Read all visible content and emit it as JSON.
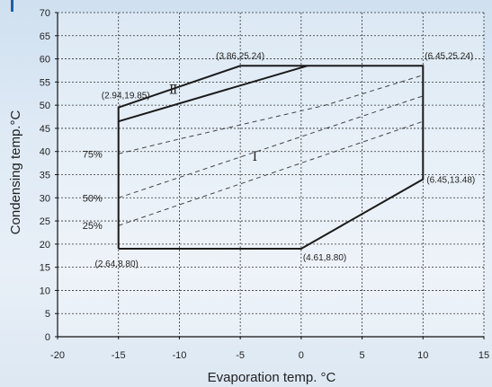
{
  "chart_data": {
    "type": "line",
    "title": "",
    "xlabel": "Evaporation temp.  °C",
    "ylabel": "Condensing temp.°C",
    "xlim": [
      -20,
      15
    ],
    "ylim": [
      0,
      70
    ],
    "x_ticks": [
      "-20",
      "-15",
      "-10",
      "-5",
      "0",
      "5",
      "10",
      "15"
    ],
    "y_ticks": [
      "0",
      "5",
      "10",
      "15",
      "20",
      "25",
      "30",
      "35",
      "40",
      "45",
      "50",
      "55",
      "60",
      "65",
      "70"
    ],
    "grid": true,
    "envelope": {
      "name": "operating-envelope",
      "points": [
        [
          -15,
          19
        ],
        [
          0,
          19
        ],
        [
          10,
          34
        ],
        [
          10,
          58.5
        ],
        [
          -5,
          58.5
        ],
        [
          -15,
          49.5
        ],
        [
          -15,
          19
        ]
      ]
    },
    "region_divider": {
      "points": [
        [
          -15,
          46.5
        ],
        [
          0.5,
          58.5
        ]
      ]
    },
    "dashed_lines": [
      {
        "label": "75%",
        "points": [
          [
            -15,
            39.5
          ],
          [
            -10,
            42.7
          ],
          [
            2,
            50
          ],
          [
            10,
            56.5
          ]
        ]
      },
      {
        "label": "50%",
        "points": [
          [
            -15,
            30
          ],
          [
            10,
            52
          ]
        ]
      },
      {
        "label": "25%",
        "points": [
          [
            -15,
            24
          ],
          [
            10,
            46.5
          ]
        ]
      }
    ],
    "regions": [
      {
        "label": "Ⅱ",
        "x": -10.5,
        "y": 52.5
      },
      {
        "label": "Ⅰ",
        "x": -3.8,
        "y": 38
      }
    ],
    "annotations": [
      {
        "text": "(3.86,25.24)",
        "x": -5,
        "y": 58.5,
        "pos": "top"
      },
      {
        "text": "(6.45,25.24)",
        "x": 10,
        "y": 58.5,
        "pos": "top-right"
      },
      {
        "text": "(2.94,19.85)",
        "x": -15,
        "y": 49.5,
        "pos": "top-left"
      },
      {
        "text": "(6.45,13.48)",
        "x": 10,
        "y": 34,
        "pos": "right"
      },
      {
        "text": "(4.61,8.80)",
        "x": 0,
        "y": 19,
        "pos": "bottom-right"
      },
      {
        "text": "(2.64,8.80)",
        "x": -15,
        "y": 19,
        "pos": "bottom-left"
      }
    ],
    "colors": {
      "envelope": "#1a1a1a",
      "grid": "#333333",
      "dashed": "#444444",
      "accent": "#1c5fa8"
    }
  }
}
